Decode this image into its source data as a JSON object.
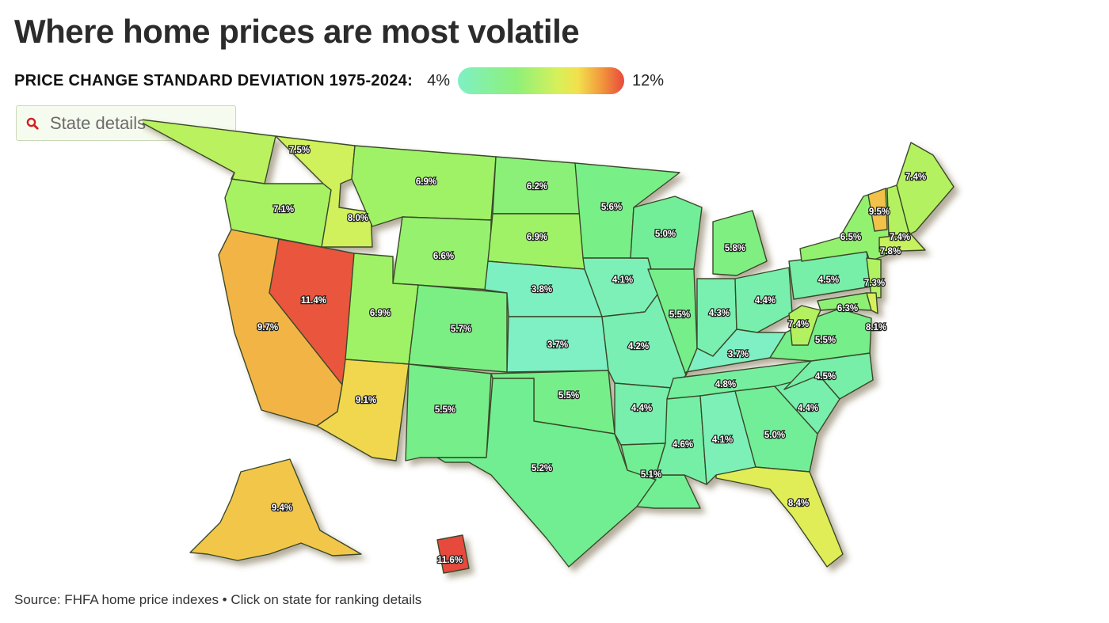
{
  "title": "Where home prices are most volatile",
  "legend": {
    "label": "PRICE CHANGE STANDARD DEVIATION 1975-2024:",
    "min_label": "4%",
    "max_label": "12%",
    "min_value": 4,
    "max_value": 12
  },
  "search": {
    "placeholder": "State details ...",
    "icon": "search-icon"
  },
  "source": "Source: FHFA home price indexes • Click on state for ranking details",
  "colors": {
    "low": "#7ef0c4",
    "mid_low": "#8ef07a",
    "mid": "#d6f05a",
    "mid_high": "#f29a3c",
    "high": "#e84a3c",
    "border": "#3a4a2a"
  },
  "chart_data": {
    "type": "choropleth",
    "unit": "%",
    "states": [
      {
        "id": "WA",
        "value": 7.5,
        "label": "7.5%"
      },
      {
        "id": "OR",
        "value": 7.1,
        "label": "7.1%"
      },
      {
        "id": "CA",
        "value": 9.7,
        "label": "9.7%"
      },
      {
        "id": "NV",
        "value": 11.4,
        "label": "11.4%"
      },
      {
        "id": "ID",
        "value": 8.0,
        "label": "8.0%"
      },
      {
        "id": "MT",
        "value": 6.9,
        "label": "6.9%"
      },
      {
        "id": "WY",
        "value": 6.6,
        "label": "6.6%"
      },
      {
        "id": "UT",
        "value": 6.9,
        "label": "6.9%"
      },
      {
        "id": "AZ",
        "value": 9.1,
        "label": "9.1%"
      },
      {
        "id": "CO",
        "value": 5.7,
        "label": "5.7%"
      },
      {
        "id": "NM",
        "value": 5.5,
        "label": "5.5%"
      },
      {
        "id": "ND",
        "value": 6.2,
        "label": "6.2%"
      },
      {
        "id": "SD",
        "value": 6.9,
        "label": "6.9%"
      },
      {
        "id": "NE",
        "value": 3.8,
        "label": "3.8%"
      },
      {
        "id": "KS",
        "value": 3.7,
        "label": "3.7%"
      },
      {
        "id": "OK",
        "value": 5.5,
        "label": "5.5%"
      },
      {
        "id": "TX",
        "value": 5.2,
        "label": "5.2%"
      },
      {
        "id": "MN",
        "value": 5.6,
        "label": "5.6%"
      },
      {
        "id": "IA",
        "value": 4.1,
        "label": "4.1%"
      },
      {
        "id": "MO",
        "value": 4.2,
        "label": "4.2%"
      },
      {
        "id": "AR",
        "value": 4.4,
        "label": "4.4%"
      },
      {
        "id": "LA",
        "value": 5.1,
        "label": "5.1%"
      },
      {
        "id": "WI",
        "value": 5.0,
        "label": "5.0%"
      },
      {
        "id": "IL",
        "value": 5.5,
        "label": "5.5%"
      },
      {
        "id": "MI",
        "value": 5.8,
        "label": "5.8%"
      },
      {
        "id": "IN",
        "value": 4.3,
        "label": "4.3%"
      },
      {
        "id": "OH",
        "value": 4.4,
        "label": "4.4%"
      },
      {
        "id": "KY",
        "value": 3.7,
        "label": "3.7%"
      },
      {
        "id": "TN",
        "value": 4.8,
        "label": "4.8%"
      },
      {
        "id": "MS",
        "value": 4.6,
        "label": "4.6%"
      },
      {
        "id": "AL",
        "value": 4.1,
        "label": "4.1%"
      },
      {
        "id": "GA",
        "value": 5.0,
        "label": "5.0%"
      },
      {
        "id": "FL",
        "value": 8.4,
        "label": "8.4%"
      },
      {
        "id": "SC",
        "value": 4.4,
        "label": "4.4%"
      },
      {
        "id": "NC",
        "value": 4.5,
        "label": "4.5%"
      },
      {
        "id": "VA",
        "value": 5.5,
        "label": "5.5%"
      },
      {
        "id": "WV",
        "value": 7.4,
        "label": "7.4%"
      },
      {
        "id": "PA",
        "value": 4.5,
        "label": "4.5%"
      },
      {
        "id": "NY",
        "value": 6.5,
        "label": "6.5%"
      },
      {
        "id": "VT",
        "value": 9.5,
        "label": "9.5%"
      },
      {
        "id": "NH",
        "value": 7.4,
        "label": "7.4%"
      },
      {
        "id": "ME",
        "value": 7.4,
        "label": "7.4%"
      },
      {
        "id": "MA",
        "value": 7.8,
        "label": "7.8%"
      },
      {
        "id": "NJ",
        "value": 7.3,
        "label": "7.3%"
      },
      {
        "id": "MD",
        "value": 6.3,
        "label": "6.3%"
      },
      {
        "id": "DE",
        "value": 8.1,
        "label": "8.1%"
      },
      {
        "id": "AK",
        "value": 9.4,
        "label": "9.4%"
      },
      {
        "id": "HI",
        "value": 11.6,
        "label": "11.6%"
      }
    ]
  }
}
